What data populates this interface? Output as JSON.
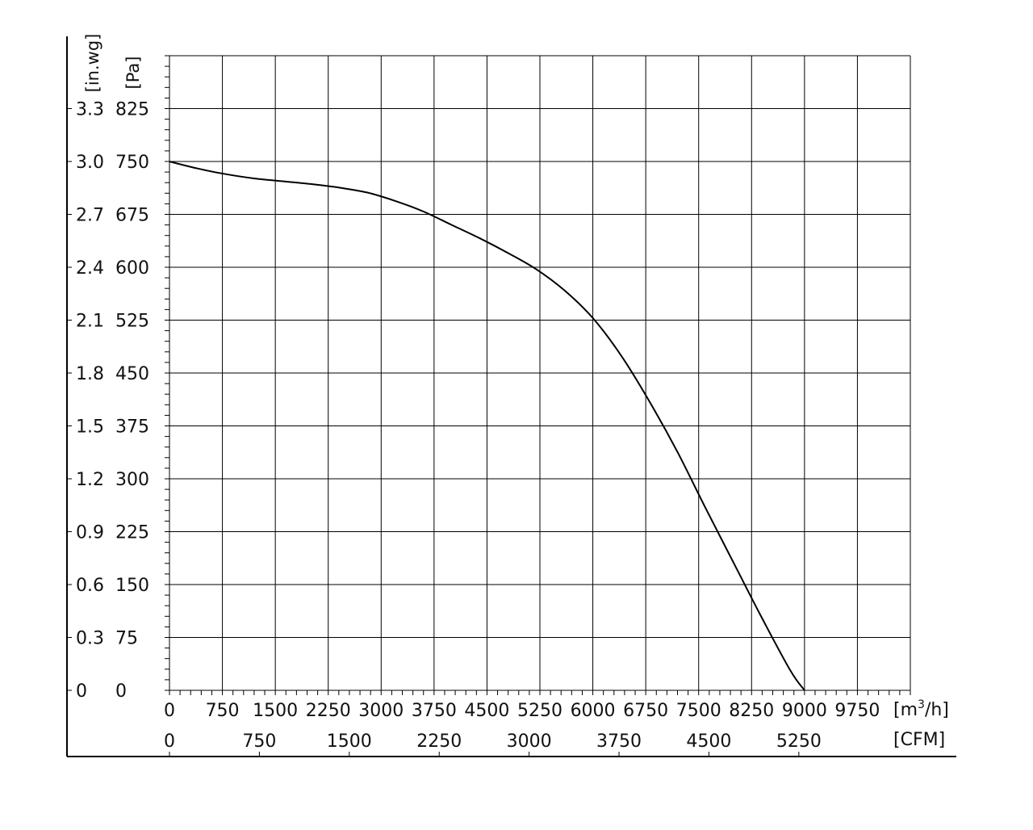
{
  "chart_data": {
    "type": "line",
    "title": "",
    "x_axis_primary": {
      "unit_label": "[m³/h]",
      "unit_base": "[m",
      "unit_sup": "3",
      "unit_tail": "/h]",
      "range": [
        0,
        10500
      ],
      "ticks": [
        "0",
        "750",
        "1500",
        "2250",
        "3000",
        "3750",
        "4500",
        "5250",
        "6000",
        "6750",
        "7500",
        "8250",
        "9000",
        "9750"
      ],
      "tick_values": [
        0,
        750,
        1500,
        2250,
        3000,
        3750,
        4500,
        5250,
        6000,
        6750,
        7500,
        8250,
        9000,
        9750
      ]
    },
    "x_axis_secondary": {
      "unit_label": "[CFM]",
      "ticks": [
        "0",
        "750",
        "1500",
        "2250",
        "3000",
        "3750",
        "4500",
        "5250"
      ],
      "tick_values": [
        0,
        750,
        1500,
        2250,
        3000,
        3750,
        4500,
        5250
      ]
    },
    "y_axis_primary": {
      "unit_label": "[Pa]",
      "range": [
        0,
        900
      ],
      "ticks": [
        "0",
        "75",
        "150",
        "225",
        "300",
        "375",
        "450",
        "525",
        "600",
        "675",
        "750",
        "825"
      ],
      "tick_values": [
        0,
        75,
        150,
        225,
        300,
        375,
        450,
        525,
        600,
        675,
        750,
        825
      ]
    },
    "y_axis_secondary": {
      "unit_label": "[in.wg]",
      "ticks": [
        "0",
        "0.3",
        "0.6",
        "0.9",
        "1.2",
        "1.5",
        "1.8",
        "2.1",
        "2.4",
        "2.7",
        "3.0",
        "3.3"
      ],
      "tick_values": [
        0,
        0.3,
        0.6,
        0.9,
        1.2,
        1.5,
        1.8,
        2.1,
        2.4,
        2.7,
        3.0,
        3.3
      ]
    },
    "grid": true,
    "series": [
      {
        "x": [
          0,
          400,
          800,
          1200,
          1600,
          2000,
          2400,
          2800,
          3200,
          3600,
          4000,
          4400,
          4800,
          5200,
          5600,
          6000,
          6400,
          6800,
          7200,
          7600,
          8000,
          8400,
          8800,
          9000
        ],
        "y": [
          750,
          740,
          732,
          726,
          722,
          718,
          713,
          706,
          694,
          679,
          660,
          641,
          620,
          597,
          567,
          528,
          475,
          410,
          338,
          258,
          180,
          102,
          28,
          0
        ]
      }
    ]
  }
}
